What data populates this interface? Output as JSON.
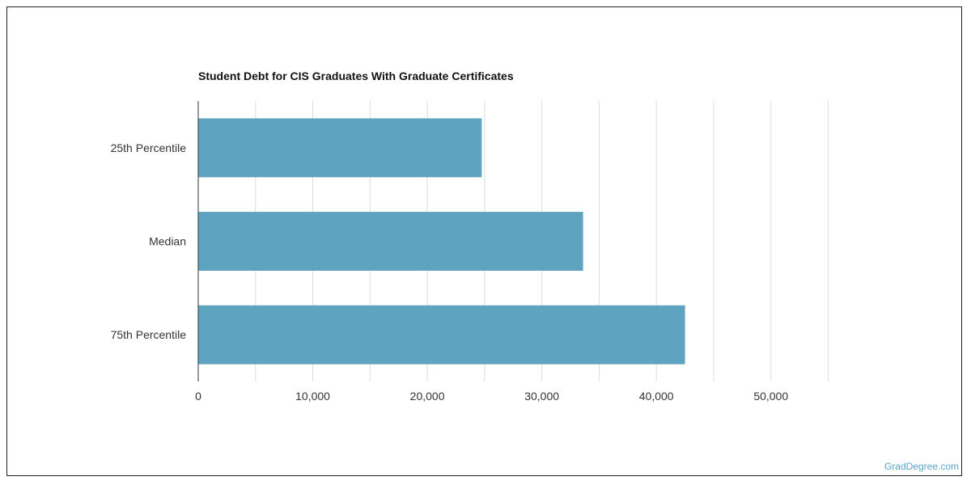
{
  "chart_data": {
    "type": "bar",
    "orientation": "horizontal",
    "title": "Student Debt for CIS Graduates With Graduate Certificates",
    "categories": [
      "25th Percentile",
      "Median",
      "75th Percentile"
    ],
    "values": [
      24750,
      33600,
      42500
    ],
    "xlim": [
      0,
      55000
    ],
    "xticks": [
      0,
      10000,
      20000,
      30000,
      40000,
      50000
    ],
    "xtick_labels": [
      "0",
      "10,000",
      "20,000",
      "30,000",
      "40,000",
      "50,000"
    ],
    "grid": true,
    "bar_color": "#5ea3c0"
  },
  "watermark": "GradDegree.com"
}
